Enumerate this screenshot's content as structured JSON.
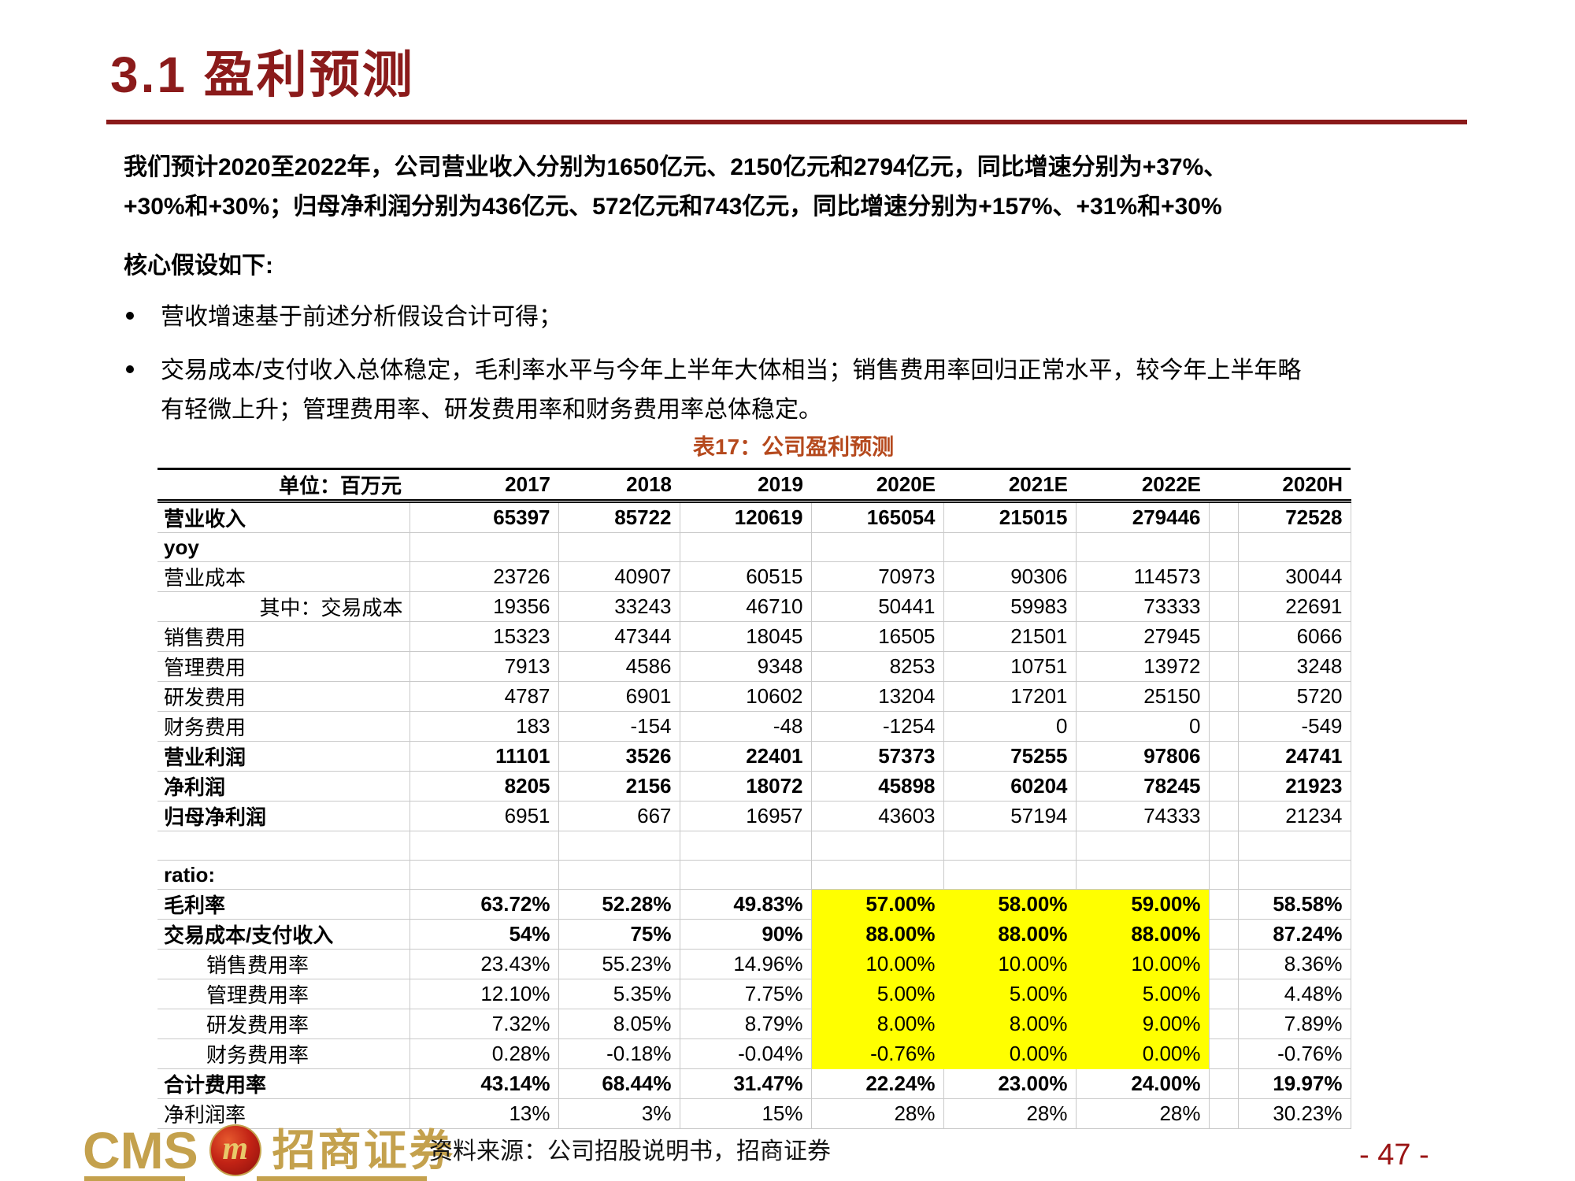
{
  "page": {
    "title": "3.1 盈利预测",
    "page_number": "- 47 -"
  },
  "intro": {
    "line1": "我们预计2020至2022年，公司营业收入分别为1650亿元、2150亿元和2794亿元，同比增速分别为+37%、",
    "line2": "+30%和+30%；归母净利润分别为436亿元、572亿元和743亿元，同比增速分别为+157%、+31%和+30%",
    "assumptions_heading": "核心假设如下:",
    "bullet1": "营收增速基于前述分析假设合计可得；",
    "bullet2_line1": "交易成本/支付收入总体稳定，毛利率水平与今年上半年大体相当；销售费用率回归正常水平，较今年上半年略",
    "bullet2_line2": "有轻微上升；管理费用率、研发费用率和财务费用率总体稳定。"
  },
  "table": {
    "caption": "表17：公司盈利预测",
    "unit_header": "单位：百万元",
    "columns": [
      "2017",
      "2018",
      "2019",
      "2020E",
      "2021E",
      "2022E",
      "2020H"
    ],
    "highlight_color": "#FFFF00",
    "rows": [
      {
        "label": "营业收入",
        "label_style": "bold",
        "values_bold": true,
        "values": [
          "65397",
          "85722",
          "120619",
          "165054",
          "215015",
          "279446",
          "72528"
        ]
      },
      {
        "label": "yoy",
        "label_style": "bold",
        "values": [
          "",
          "",
          "",
          "",
          "",
          "",
          ""
        ]
      },
      {
        "label": "营业成本",
        "label_style": "normal",
        "values": [
          "23726",
          "40907",
          "60515",
          "70973",
          "90306",
          "114573",
          "30044"
        ]
      },
      {
        "label": "其中：交易成本",
        "label_style": "right",
        "values": [
          "19356",
          "33243",
          "46710",
          "50441",
          "59983",
          "73333",
          "22691"
        ]
      },
      {
        "label": "销售费用",
        "label_style": "normal",
        "values": [
          "15323",
          "47344",
          "18045",
          "16505",
          "21501",
          "27945",
          "6066"
        ]
      },
      {
        "label": "管理费用",
        "label_style": "normal",
        "values": [
          "7913",
          "4586",
          "9348",
          "8253",
          "10751",
          "13972",
          "3248"
        ]
      },
      {
        "label": "研发费用",
        "label_style": "normal",
        "values": [
          "4787",
          "6901",
          "10602",
          "13204",
          "17201",
          "25150",
          "5720"
        ]
      },
      {
        "label": "财务费用",
        "label_style": "normal",
        "values": [
          "183",
          "-154",
          "-48",
          "-1254",
          "0",
          "0",
          "-549"
        ]
      },
      {
        "label": "营业利润",
        "label_style": "bold",
        "values_bold": true,
        "values": [
          "11101",
          "3526",
          "22401",
          "57373",
          "75255",
          "97806",
          "24741"
        ]
      },
      {
        "label": "净利润",
        "label_style": "bold",
        "values_bold": true,
        "values": [
          "8205",
          "2156",
          "18072",
          "45898",
          "60204",
          "78245",
          "21923"
        ]
      },
      {
        "label": "归母净利润",
        "label_style": "bold",
        "values": [
          "6951",
          "667",
          "16957",
          "43603",
          "57194",
          "74333",
          "21234"
        ]
      },
      {
        "label": "",
        "label_style": "normal",
        "values": [
          "",
          "",
          "",
          "",
          "",
          "",
          ""
        ]
      },
      {
        "label": "ratio:",
        "label_style": "bold",
        "values": [
          "",
          "",
          "",
          "",
          "",
          "",
          ""
        ]
      },
      {
        "label": "毛利率",
        "label_style": "bold",
        "values_bold": true,
        "highlight": [
          3,
          4,
          5
        ],
        "values": [
          "63.72%",
          "52.28%",
          "49.83%",
          "57.00%",
          "58.00%",
          "59.00%",
          "58.58%"
        ]
      },
      {
        "label": "交易成本/支付收入",
        "label_style": "bold",
        "values_bold": true,
        "highlight": [
          3,
          4,
          5
        ],
        "values": [
          "54%",
          "75%",
          "90%",
          "88.00%",
          "88.00%",
          "88.00%",
          "87.24%"
        ]
      },
      {
        "label": "销售费用率",
        "label_style": "indent",
        "highlight": [
          3,
          4,
          5
        ],
        "values": [
          "23.43%",
          "55.23%",
          "14.96%",
          "10.00%",
          "10.00%",
          "10.00%",
          "8.36%"
        ]
      },
      {
        "label": "管理费用率",
        "label_style": "indent",
        "highlight": [
          3,
          4,
          5
        ],
        "values": [
          "12.10%",
          "5.35%",
          "7.75%",
          "5.00%",
          "5.00%",
          "5.00%",
          "4.48%"
        ]
      },
      {
        "label": "研发费用率",
        "label_style": "indent",
        "highlight": [
          3,
          4,
          5
        ],
        "values": [
          "7.32%",
          "8.05%",
          "8.79%",
          "8.00%",
          "8.00%",
          "9.00%",
          "7.89%"
        ]
      },
      {
        "label": "财务费用率",
        "label_style": "indent",
        "highlight": [
          3,
          4,
          5
        ],
        "values": [
          "0.28%",
          "-0.18%",
          "-0.04%",
          "-0.76%",
          "0.00%",
          "0.00%",
          "-0.76%"
        ]
      },
      {
        "label": "合计费用率",
        "label_style": "bold",
        "values_bold": true,
        "values": [
          "43.14%",
          "68.44%",
          "31.47%",
          "22.24%",
          "23.00%",
          "24.00%",
          "19.97%"
        ]
      },
      {
        "label": "净利润率",
        "label_style": "normal",
        "values": [
          "13%",
          "3%",
          "15%",
          "28%",
          "28%",
          "28%",
          "30.23%"
        ]
      }
    ]
  },
  "footer": {
    "brand_cms": "CMS",
    "brand_name": "招商证券",
    "logo_monogram": "m",
    "source": "资料来源：公司招股说明书，招商证券"
  },
  "colors": {
    "title_red": "#8B1B1B",
    "caption_orange": "#B5491D",
    "highlight_yellow": "#FFFF00",
    "brand_gold": "#C4A14D",
    "grid_gray": "#C9C9C9"
  }
}
